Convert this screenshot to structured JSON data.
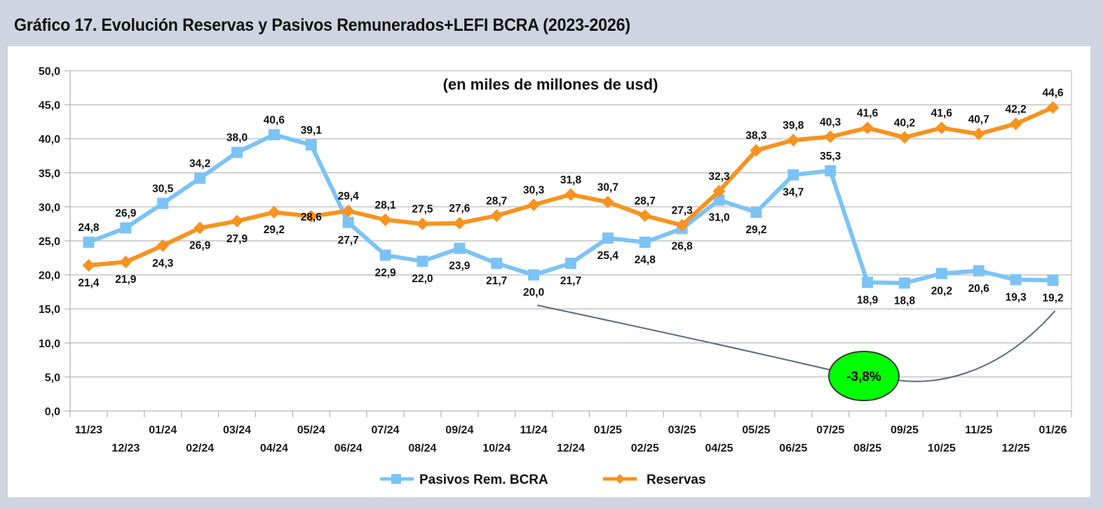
{
  "figure_title": "Gráfico 17. Evolución Reservas y Pasivos Remunerados+LEFI BCRA (2023-2026)",
  "chart_data": {
    "type": "line",
    "title": "Gráfico 17. Evolución Reservas y Pasivos Remunerados+LEFI BCRA (2023-2026)",
    "subtitle": "(en miles de millones de usd)",
    "xlabel": "",
    "ylabel": "",
    "ylim": [
      0,
      50
    ],
    "yticks": [
      "0,0",
      "5,0",
      "10,0",
      "15,0",
      "20,0",
      "25,0",
      "30,0",
      "35,0",
      "40,0",
      "45,0",
      "50,0"
    ],
    "ytick_values": [
      0,
      5,
      10,
      15,
      20,
      25,
      30,
      35,
      40,
      45,
      50
    ],
    "grid": true,
    "legend_position": "bottom",
    "categories": [
      "11/23",
      "12/23",
      "01/24",
      "02/24",
      "03/24",
      "04/24",
      "05/24",
      "06/24",
      "07/24",
      "08/24",
      "09/24",
      "10/24",
      "11/24",
      "12/24",
      "01/25",
      "02/25",
      "03/25",
      "04/25",
      "05/25",
      "06/25",
      "07/25",
      "08/25",
      "09/25",
      "10/25",
      "11/25",
      "12/25",
      "01/26"
    ],
    "series": [
      {
        "name": "Pasivos Rem. BCRA",
        "color": "#7cc3f5",
        "marker": "square",
        "values": [
          24.8,
          26.9,
          30.5,
          34.2,
          38.0,
          40.6,
          39.1,
          27.7,
          22.9,
          22.0,
          23.9,
          21.7,
          20.0,
          21.7,
          25.4,
          24.8,
          26.8,
          31.0,
          29.2,
          34.7,
          35.3,
          18.9,
          18.8,
          20.2,
          20.6,
          19.3,
          19.2
        ],
        "labels": [
          "24,8",
          "26,9",
          "30,5",
          "34,2",
          "38,0",
          "40,6",
          "39,1",
          "27,7",
          "22,9",
          "22,0",
          "23,9",
          "21,7",
          "20,0",
          "21,7",
          "25,4",
          "24,8",
          "26,8",
          "31,0",
          "29,2",
          "34,7",
          "35,3",
          "18,9",
          "18,8",
          "20,2",
          "20,6",
          "19,3",
          "19,2"
        ],
        "label_side": [
          "above",
          "above",
          "above",
          "above",
          "above",
          "above",
          "above",
          "below",
          "below",
          "below",
          "below",
          "below",
          "below",
          "below",
          "below",
          "below",
          "below",
          "below",
          "below",
          "below",
          "above",
          "below",
          "below",
          "below",
          "below",
          "below",
          "below"
        ]
      },
      {
        "name": "Reservas",
        "color": "#f7931e",
        "marker": "diamond",
        "values": [
          21.4,
          21.9,
          24.3,
          26.9,
          27.9,
          29.2,
          28.6,
          29.4,
          28.1,
          27.5,
          27.6,
          28.7,
          30.3,
          31.8,
          30.7,
          28.7,
          27.3,
          32.3,
          38.3,
          39.8,
          40.3,
          41.6,
          40.2,
          41.6,
          40.7,
          42.2,
          44.6
        ],
        "labels": [
          "21,4",
          "21,9",
          "24,3",
          "26,9",
          "27,9",
          "29,2",
          "28,6",
          "29,4",
          "28,1",
          "27,5",
          "27,6",
          "28,7",
          "30,3",
          "31,8",
          "30,7",
          "28,7",
          "27,3",
          "32,3",
          "38,3",
          "39,8",
          "40,3",
          "41,6",
          "40,2",
          "41,6",
          "40,7",
          "42,2",
          "44,6"
        ],
        "label_side": [
          "below",
          "below",
          "below",
          "below",
          "below",
          "below",
          "center",
          "above",
          "above",
          "above",
          "above",
          "above",
          "above",
          "above",
          "above",
          "above",
          "above",
          "above",
          "above",
          "above",
          "above",
          "above",
          "above",
          "above",
          "above",
          "above",
          "above"
        ]
      }
    ],
    "annotations": [
      {
        "text": "-3,8%",
        "type": "callout-ellipse",
        "fill": "#00ff00",
        "from_category": "11/24",
        "to_category": "01/26",
        "series": "Pasivos Rem. BCRA"
      }
    ]
  }
}
